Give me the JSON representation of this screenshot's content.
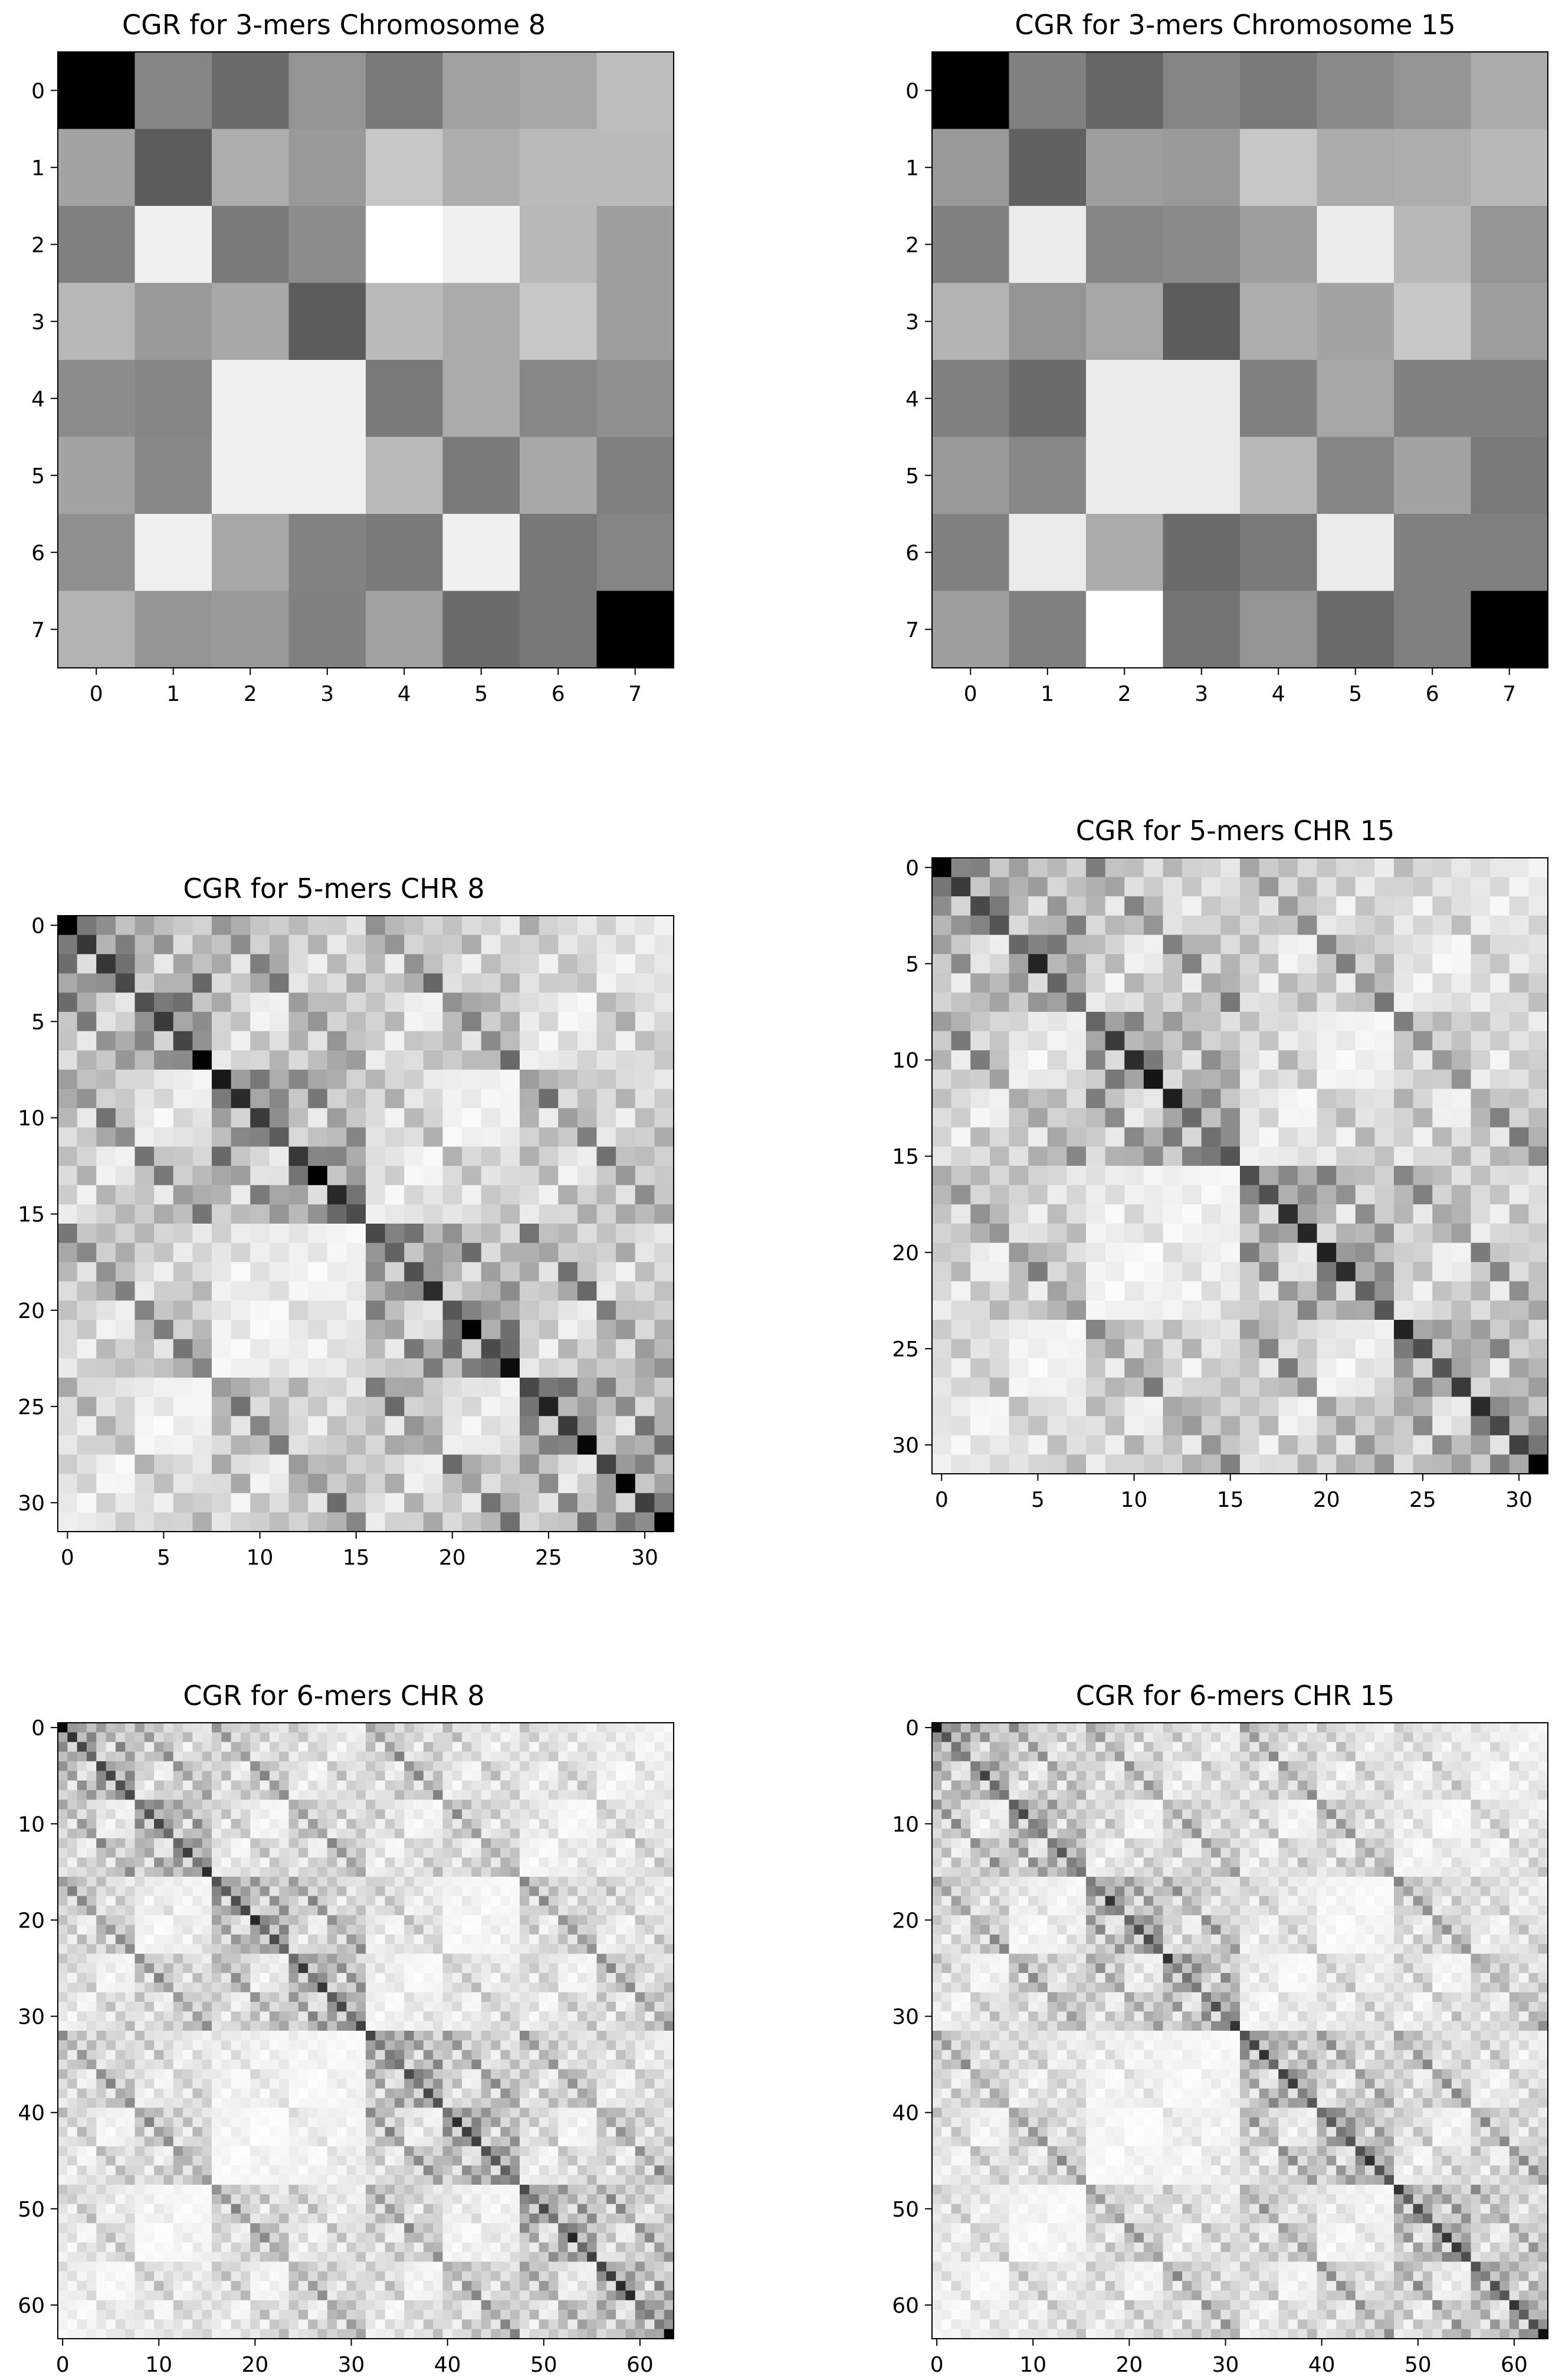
{
  "figure": {
    "background": "#ffffff",
    "cmap": "gray_r"
  },
  "chart_data": [
    {
      "type": "heatmap",
      "title": "CGR for 3-mers Chromosome 8",
      "size": 8,
      "ticks": [
        0,
        1,
        2,
        3,
        4,
        5,
        6,
        7
      ],
      "values": [
        [
          1.0,
          0.48,
          0.58,
          0.42,
          0.52,
          0.37,
          0.35,
          0.26
        ],
        [
          0.36,
          0.64,
          0.32,
          0.4,
          0.22,
          0.32,
          0.27,
          0.27
        ],
        [
          0.5,
          0.06,
          0.52,
          0.45,
          0.0,
          0.06,
          0.28,
          0.38
        ],
        [
          0.28,
          0.4,
          0.34,
          0.64,
          0.27,
          0.33,
          0.22,
          0.38
        ],
        [
          0.45,
          0.48,
          0.06,
          0.06,
          0.52,
          0.33,
          0.47,
          0.44
        ],
        [
          0.36,
          0.47,
          0.06,
          0.06,
          0.27,
          0.52,
          0.34,
          0.5
        ],
        [
          0.44,
          0.06,
          0.34,
          0.49,
          0.52,
          0.06,
          0.53,
          0.48
        ],
        [
          0.3,
          0.42,
          0.4,
          0.5,
          0.37,
          0.58,
          0.53,
          1.0
        ]
      ]
    },
    {
      "type": "heatmap",
      "title": "CGR for 3-mers Chromosome 15",
      "size": 8,
      "ticks": [
        0,
        1,
        2,
        3,
        4,
        5,
        6,
        7
      ],
      "values": [
        [
          1.0,
          0.5,
          0.6,
          0.48,
          0.52,
          0.46,
          0.42,
          0.33
        ],
        [
          0.4,
          0.62,
          0.38,
          0.4,
          0.22,
          0.33,
          0.32,
          0.28
        ],
        [
          0.5,
          0.08,
          0.48,
          0.46,
          0.38,
          0.08,
          0.28,
          0.42
        ],
        [
          0.3,
          0.42,
          0.35,
          0.64,
          0.32,
          0.36,
          0.22,
          0.38
        ],
        [
          0.5,
          0.58,
          0.08,
          0.08,
          0.5,
          0.35,
          0.5,
          0.5
        ],
        [
          0.4,
          0.47,
          0.08,
          0.08,
          0.28,
          0.48,
          0.36,
          0.52
        ],
        [
          0.5,
          0.08,
          0.33,
          0.58,
          0.52,
          0.08,
          0.5,
          0.5
        ],
        [
          0.38,
          0.5,
          0.0,
          0.55,
          0.42,
          0.58,
          0.5,
          1.0
        ]
      ]
    },
    {
      "type": "heatmap",
      "title": "CGR for 5-mers CHR 8",
      "size": 32,
      "ticks": [
        0,
        5,
        10,
        15,
        20,
        25,
        30
      ],
      "value_scale": 1.0,
      "seed": 8
    },
    {
      "type": "heatmap",
      "title": "CGR for 5-mers CHR 15",
      "size": 32,
      "ticks": [
        0,
        5,
        10,
        15,
        20,
        25,
        30
      ],
      "value_scale": 0.92,
      "seed": 15
    },
    {
      "type": "heatmap",
      "title": "CGR for 6-mers CHR 8",
      "size": 64,
      "ticks": [
        0,
        10,
        20,
        30,
        40,
        50,
        60
      ],
      "value_scale": 0.85,
      "seed": 18
    },
    {
      "type": "heatmap",
      "title": "CGR for 6-mers CHR 15",
      "size": 64,
      "ticks": [
        0,
        10,
        20,
        30,
        40,
        50,
        60
      ],
      "value_scale": 0.82,
      "seed": 25
    }
  ]
}
